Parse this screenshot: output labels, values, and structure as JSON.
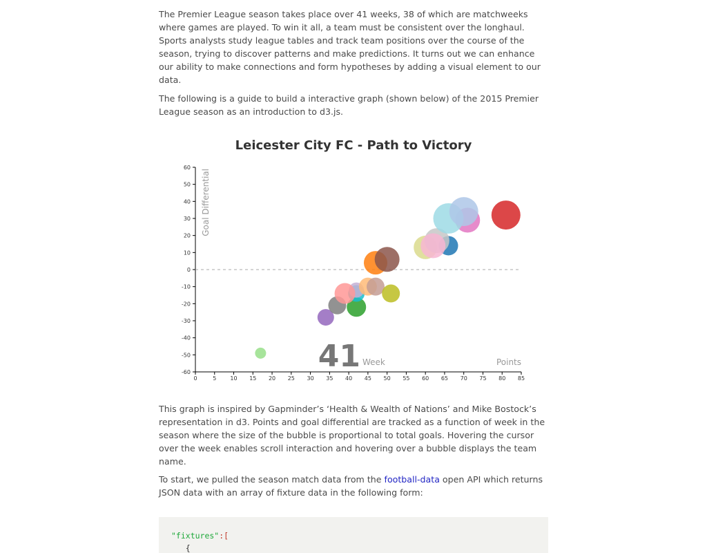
{
  "article": {
    "paragraph_1": "The Premier League season takes place over 41 weeks, 38 of which are matchweeks where games are played. To win it all, a team must be consistent over the longhaul. Sports analysts study league tables and track team positions over the course of the season, trying to discover patterns and make predictions. It turns out we can enhance our ability to make connections and form hypotheses by adding a visual element to our data.",
    "paragraph_2": "The following is a guide to build a interactive graph (shown below) of the 2015 Premier League season as an introduction to d3.js.",
    "paragraph_3": "This graph is inspired by Gapminder’s ‘Health & Wealth of Nations’ and Mike Bostock’s representation in d3. Points and goal differential are tracked as a function of week in the season where the size of the bubble is proportional to total goals. Hovering the cursor over the week enables scroll interaction and hovering over a bubble displays the team name.",
    "paragraph_4_before": "To start, we pulled the season match data from the ",
    "paragraph_4_link": "football-data",
    "paragraph_4_after": " open API which returns JSON data with an array of fixture data in the following form:"
  },
  "code": {
    "line_1_key": "\"fixtures\"",
    "line_1_rest": ":[",
    "line_2": "   {"
  },
  "chart_data": {
    "type": "scatter",
    "title": "Leicester City FC - Path to Victory",
    "xlabel": "Points",
    "ylabel": "Goal Differential",
    "xlim": [
      0,
      85
    ],
    "ylim": [
      -60,
      60
    ],
    "x_ticks": [
      0,
      5,
      10,
      15,
      20,
      25,
      30,
      35,
      40,
      45,
      50,
      55,
      60,
      65,
      70,
      75,
      80,
      85
    ],
    "y_ticks": [
      -60,
      -50,
      -40,
      -30,
      -20,
      -10,
      0,
      10,
      20,
      30,
      40,
      50,
      60
    ],
    "week_value": "41",
    "week_label": "Week",
    "zero_line": "dashed",
    "points": [
      {
        "x": 17,
        "y": -49,
        "size": 8,
        "color": "#98df8a"
      },
      {
        "x": 34,
        "y": -28,
        "size": 12,
        "color": "#9467bd"
      },
      {
        "x": 37,
        "y": -21,
        "size": 13,
        "color": "#7f7f7f"
      },
      {
        "x": 42,
        "y": -22,
        "size": 14,
        "color": "#2ca02c"
      },
      {
        "x": 42,
        "y": -14,
        "size": 12,
        "color": "#17becf"
      },
      {
        "x": 42,
        "y": -12,
        "size": 11,
        "color": "#c5b0d5"
      },
      {
        "x": 39,
        "y": -14,
        "size": 15,
        "color": "#ff9896"
      },
      {
        "x": 45,
        "y": -10,
        "size": 13,
        "color": "#ffbb78"
      },
      {
        "x": 47,
        "y": -10,
        "size": 13,
        "color": "#c49c94"
      },
      {
        "x": 51,
        "y": -14,
        "size": 13,
        "color": "#bcbd22"
      },
      {
        "x": 47,
        "y": 4,
        "size": 17,
        "color": "#ff7f0e"
      },
      {
        "x": 50,
        "y": 6,
        "size": 18,
        "color": "#8c564b"
      },
      {
        "x": 60,
        "y": 13,
        "size": 17,
        "color": "#dbdb8d"
      },
      {
        "x": 66,
        "y": 14,
        "size": 14,
        "color": "#1f77b4"
      },
      {
        "x": 63,
        "y": 17,
        "size": 18,
        "color": "#c7c7c7"
      },
      {
        "x": 62,
        "y": 14,
        "size": 18,
        "color": "#f7b6d2"
      },
      {
        "x": 71,
        "y": 29,
        "size": 18,
        "color": "#e377c2"
      },
      {
        "x": 66,
        "y": 30,
        "size": 22,
        "color": "#9edae5"
      },
      {
        "x": 70,
        "y": 34,
        "size": 21,
        "color": "#aec7e8"
      },
      {
        "x": 81,
        "y": 32,
        "size": 21,
        "color": "#d62728"
      }
    ]
  }
}
